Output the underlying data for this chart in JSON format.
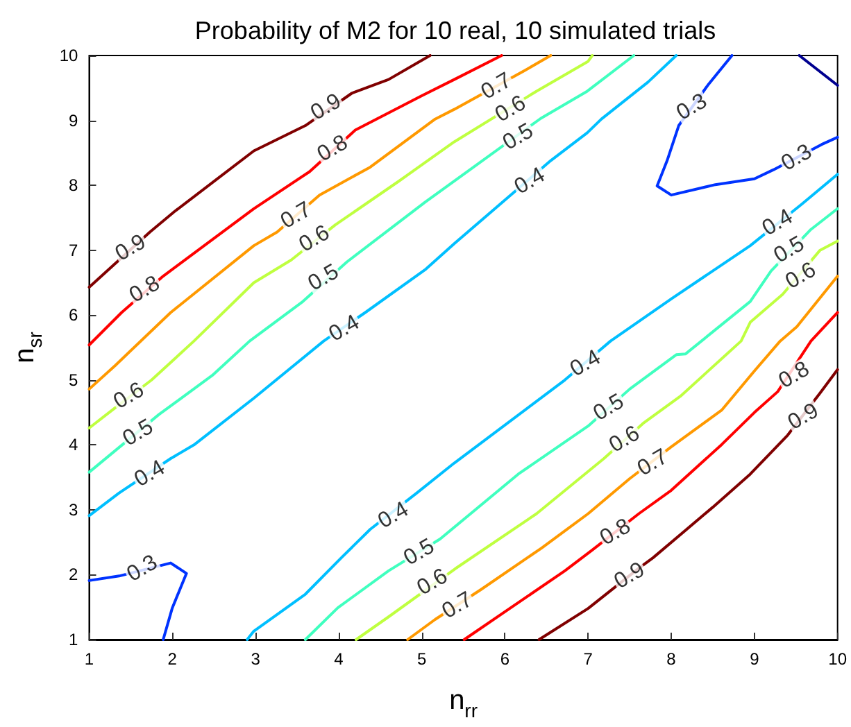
{
  "chart_data": {
    "type": "line",
    "title": "Probability of M2 for 10 real, 10 simulated trials",
    "xlabel": "n$_{rr}$",
    "ylabel": "n$_{sr}$",
    "xlim": [
      1,
      10
    ],
    "ylim": [
      1,
      10
    ],
    "xticks": [
      1,
      2,
      3,
      4,
      5,
      6,
      7,
      8,
      9,
      10
    ],
    "yticks": [
      1,
      2,
      3,
      4,
      5,
      6,
      7,
      8,
      9,
      10
    ],
    "grid": false,
    "marker": "none",
    "line_style": "solid",
    "series": [
      {
        "color": "#800000",
        "x": [
          1,
          1.73,
          2.03,
          2.98,
          3.6,
          4.16,
          4.6,
          5.1
        ],
        "values": [
          6.43,
          7.28,
          7.6,
          8.53,
          8.92,
          9.42,
          9.63,
          10
        ]
      },
      {
        "color": "#ff0000",
        "x": [
          1,
          1.39,
          1.89,
          2.98,
          3.65,
          4.2,
          5.0,
          5.39,
          5.96
        ],
        "values": [
          5.54,
          6.04,
          6.6,
          7.64,
          8.21,
          8.85,
          9.38,
          9.63,
          10
        ]
      },
      {
        "color": "#ff9900",
        "x": [
          1,
          1.31,
          1.98,
          2.98,
          3.26,
          3.77,
          4.38,
          5.16,
          5.39,
          6.24,
          6.55
        ],
        "values": [
          4.86,
          5.22,
          6.04,
          7.07,
          7.28,
          7.85,
          8.28,
          9.02,
          9.17,
          9.77,
          10
        ]
      },
      {
        "color": "#bfff40",
        "x": [
          1,
          1.28,
          1.75,
          2.26,
          2.98,
          3.43,
          3.96,
          4.72,
          5.39,
          6.38,
          7.0,
          7.05
        ],
        "values": [
          4.26,
          4.54,
          5,
          5.6,
          6.5,
          6.85,
          7.39,
          8.06,
          8.67,
          9.45,
          9.91,
          10
        ]
      },
      {
        "color": "#40ffbf",
        "x": [
          1,
          1.84,
          2.48,
          2.93,
          3.57,
          4.1,
          5.04,
          6.43,
          6.99,
          7.55
        ],
        "values": [
          3.58,
          4.47,
          5.07,
          5.6,
          6.21,
          6.82,
          7.74,
          9.03,
          9.45,
          10
        ]
      },
      {
        "color": "#00bfff",
        "x": [
          1,
          1.36,
          1.98,
          2.26,
          2.98,
          3.82,
          4.32,
          5.05,
          5.39,
          6.55,
          6.99,
          7.16,
          7.72,
          8.06
        ],
        "values": [
          2.91,
          3.26,
          3.79,
          4.0,
          4.72,
          5.6,
          6.04,
          6.71,
          7.1,
          8.38,
          8.81,
          9.02,
          9.59,
          10
        ]
      },
      {
        "color": "#0033ff",
        "x": [
          8.73,
          8.45,
          8.09,
          7.95,
          7.83,
          8.0,
          8.53,
          9.0,
          9.23,
          9.81,
          10
        ],
        "values": [
          10,
          9.56,
          8.92,
          8.38,
          7.99,
          7.85,
          8.01,
          8.1,
          8.24,
          8.63,
          8.74
        ]
      },
      {
        "color": "#000090",
        "x": [
          9.54,
          10
        ],
        "values": [
          10,
          9.54
        ]
      },
      {
        "color": "#0033ff",
        "x": [
          1,
          1.36,
          1.98,
          2.17,
          2.0,
          1.89
        ],
        "values": [
          1.91,
          1.98,
          2.18,
          2.02,
          1.49,
          1
        ]
      },
      {
        "color": "#00bfff",
        "x": [
          2.9,
          2.98,
          3.6,
          4.04,
          4.38,
          4.94,
          5.39,
          6.72,
          7.27,
          8.0,
          8.95,
          9.57,
          10
        ],
        "values": [
          1,
          1.13,
          1.7,
          2.27,
          2.7,
          3.26,
          3.72,
          5.0,
          5.6,
          6.25,
          7.07,
          7.71,
          8.17
        ]
      },
      {
        "color": "#40ffbf",
        "x": [
          3.6,
          3.99,
          4.6,
          5.22,
          6.16,
          7.0,
          7.5,
          8.06,
          8.17,
          8.95,
          9.2,
          9.68,
          10
        ],
        "values": [
          1,
          1.49,
          2.06,
          2.55,
          3.55,
          4.29,
          4.86,
          5.39,
          5.4,
          6.21,
          6.68,
          7.32,
          7.64
        ]
      },
      {
        "color": "#bfff40",
        "x": [
          4.21,
          4.6,
          5.4,
          6.38,
          7.19,
          7.66,
          8.11,
          8.84,
          8.95,
          9.34,
          9.79,
          10
        ],
        "values": [
          1,
          1.35,
          2.09,
          2.94,
          3.79,
          4.33,
          4.75,
          5.6,
          5.89,
          6.32,
          7.0,
          7.14
        ]
      },
      {
        "color": "#ff9900",
        "x": [
          4.83,
          5.16,
          5.71,
          6.44,
          7.0,
          7.5,
          8.0,
          8.61,
          9.0,
          9.31,
          9.51,
          10
        ],
        "values": [
          1,
          1.31,
          1.77,
          2.41,
          2.94,
          3.48,
          3.97,
          4.54,
          5.14,
          5.6,
          5.82,
          6.6
        ]
      },
      {
        "color": "#ff0000",
        "x": [
          5.51,
          5.99,
          6.72,
          7.05,
          7.61,
          8.0,
          8.61,
          9.0,
          9.28,
          9.68,
          10
        ],
        "values": [
          1,
          1.42,
          2.06,
          2.38,
          2.94,
          3.3,
          4.01,
          4.5,
          4.82,
          5.6,
          6.04
        ]
      },
      {
        "color": "#800000",
        "x": [
          6.41,
          7.0,
          7.61,
          7.78,
          8.5,
          8.95,
          9.4,
          9.79,
          10
        ],
        "values": [
          1,
          1.48,
          2.1,
          2.26,
          3.04,
          3.55,
          4.15,
          4.8,
          5.16
        ]
      }
    ],
    "annotations": [
      {
        "text": "0.9",
        "x": 1.5,
        "y": 7.03
      },
      {
        "text": "0.9",
        "x": 3.85,
        "y": 9.2
      },
      {
        "text": "0.8",
        "x": 1.67,
        "y": 6.39
      },
      {
        "text": "0.8",
        "x": 3.93,
        "y": 8.56
      },
      {
        "text": "0.7",
        "x": 3.49,
        "y": 7.53
      },
      {
        "text": "0.7",
        "x": 5.9,
        "y": 9.52
      },
      {
        "text": "0.6",
        "x": 3.71,
        "y": 7.17
      },
      {
        "text": "0.6",
        "x": 6.07,
        "y": 9.17
      },
      {
        "text": "0.5",
        "x": 3.82,
        "y": 6.57
      },
      {
        "text": "0.5",
        "x": 6.16,
        "y": 8.74
      },
      {
        "text": "0.4",
        "x": 4.07,
        "y": 5.79
      },
      {
        "text": "0.4",
        "x": 6.3,
        "y": 8.06
      },
      {
        "text": "0.6",
        "x": 1.48,
        "y": 4.75
      },
      {
        "text": "0.5",
        "x": 1.59,
        "y": 4.18
      },
      {
        "text": "0.4",
        "x": 1.73,
        "y": 3.55
      },
      {
        "text": "0.3",
        "x": 1.64,
        "y": 2.09
      },
      {
        "text": "0.3",
        "x": 8.25,
        "y": 9.2
      },
      {
        "text": "0.3",
        "x": 9.51,
        "y": 8.42
      },
      {
        "text": "0.4",
        "x": 9.28,
        "y": 7.42
      },
      {
        "text": "0.5",
        "x": 9.42,
        "y": 7.0
      },
      {
        "text": "0.6",
        "x": 9.56,
        "y": 6.6
      },
      {
        "text": "0.4",
        "x": 4.66,
        "y": 2.91
      },
      {
        "text": "0.5",
        "x": 4.97,
        "y": 2.34
      },
      {
        "text": "0.6",
        "x": 5.13,
        "y": 1.88
      },
      {
        "text": "0.7",
        "x": 5.43,
        "y": 1.52
      },
      {
        "text": "0.4",
        "x": 6.97,
        "y": 5.25
      },
      {
        "text": "0.5",
        "x": 7.25,
        "y": 4.57
      },
      {
        "text": "0.6",
        "x": 7.44,
        "y": 4.08
      },
      {
        "text": "0.7",
        "x": 7.78,
        "y": 3.72
      },
      {
        "text": "0.8",
        "x": 7.33,
        "y": 2.65
      },
      {
        "text": "0.9",
        "x": 7.5,
        "y": 1.98
      },
      {
        "text": "0.8",
        "x": 9.48,
        "y": 5.07
      },
      {
        "text": "0.9",
        "x": 9.59,
        "y": 4.43
      }
    ]
  }
}
